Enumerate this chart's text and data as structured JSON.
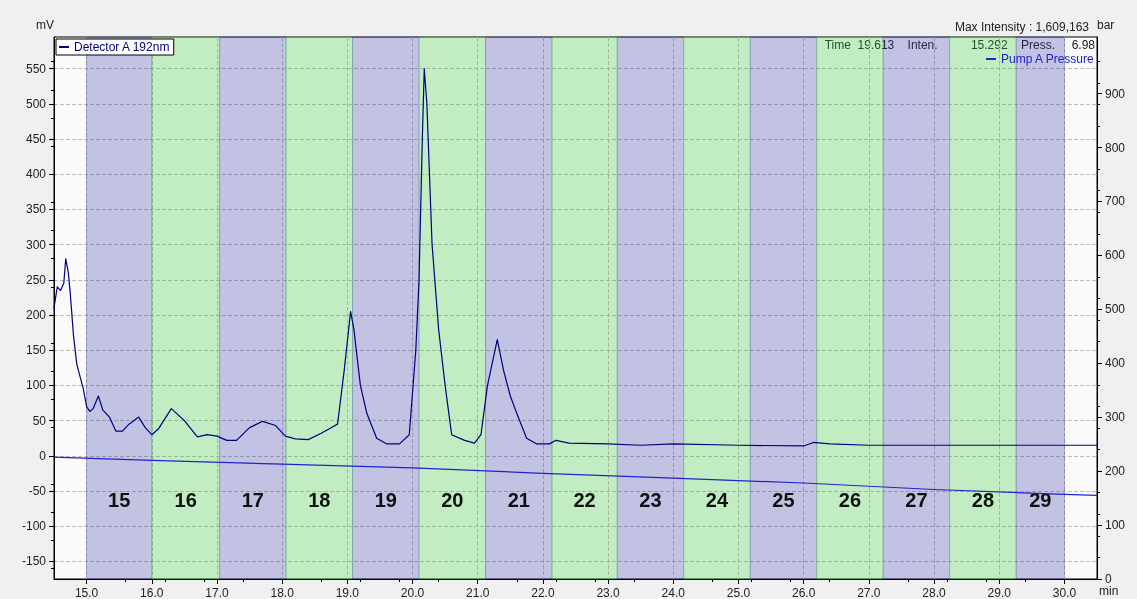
{
  "chart_data": {
    "type": "line",
    "xlabel": "min",
    "ylabel": "mV",
    "y2label": "bar",
    "annotations": [
      "Max Intensity : 1,609,163",
      "Time  19.613    Inten.          15.292    Press.     6.98"
    ],
    "series": [
      {
        "name": "Detector A 192nm",
        "color": "#000080",
        "x": [
          14.5,
          14.55,
          14.6,
          14.65,
          14.68,
          14.72,
          14.75,
          14.8,
          14.85,
          14.95,
          15.0,
          15.05,
          15.1,
          15.18,
          15.25,
          15.35,
          15.45,
          15.55,
          15.65,
          15.8,
          15.9,
          16.0,
          16.1,
          16.3,
          16.5,
          16.7,
          16.85,
          17.0,
          17.15,
          17.3,
          17.5,
          17.7,
          17.9,
          18.05,
          18.2,
          18.4,
          18.6,
          18.75,
          18.85,
          18.95,
          19.05,
          19.1,
          19.2,
          19.3,
          19.45,
          19.6,
          19.8,
          19.95,
          20.05,
          20.1,
          20.15,
          20.18,
          20.22,
          20.3,
          20.4,
          20.5,
          20.6,
          20.8,
          20.95,
          21.05,
          21.15,
          21.3,
          21.4,
          21.5,
          21.6,
          21.75,
          21.9,
          22.1,
          22.2,
          22.4,
          23.0,
          23.5,
          24.0,
          25.0,
          26.0,
          26.15,
          26.4,
          27.0,
          28.0,
          29.0,
          30.0,
          30.5
        ],
        "values": [
          210,
          240,
          235,
          245,
          280,
          260,
          230,
          170,
          130,
          95,
          70,
          63,
          67,
          85,
          65,
          55,
          35,
          35,
          45,
          55,
          40,
          30,
          38,
          67,
          50,
          27,
          30,
          28,
          22,
          22,
          40,
          49,
          43,
          28,
          24,
          23,
          32,
          40,
          45,
          120,
          205,
          180,
          100,
          60,
          25,
          17,
          17,
          30,
          150,
          250,
          450,
          550,
          500,
          300,
          180,
          100,
          30,
          22,
          18,
          30,
          100,
          165,
          120,
          85,
          60,
          25,
          17,
          17,
          22,
          18,
          17,
          15,
          17,
          15,
          14,
          19,
          17,
          15,
          15,
          15,
          15,
          15
        ]
      },
      {
        "name": "Pump A Pressure",
        "color": "#2222cc",
        "axis": "y2",
        "x": [
          14.5,
          16,
          18,
          20,
          22,
          24,
          26,
          28,
          30,
          30.5
        ],
        "values": [
          226,
          220,
          213,
          206,
          196,
          187,
          178,
          166,
          157,
          155
        ]
      }
    ],
    "xlim": [
      14.5,
      30.5
    ],
    "xticks": [
      {
        "value": 15,
        "label": "15.0"
      },
      {
        "value": 16,
        "label": "16.0"
      },
      {
        "value": 17,
        "label": "17.0"
      },
      {
        "value": 18,
        "label": "18.0"
      },
      {
        "value": 19,
        "label": "19.0"
      },
      {
        "value": 20,
        "label": "20.0"
      },
      {
        "value": 21,
        "label": "21.0"
      },
      {
        "value": 22,
        "label": "22.0"
      },
      {
        "value": 23,
        "label": "23.0"
      },
      {
        "value": 24,
        "label": "24.0"
      },
      {
        "value": 25,
        "label": "25.0"
      },
      {
        "value": 26,
        "label": "26.0"
      },
      {
        "value": 27,
        "label": "27.0"
      },
      {
        "value": 28,
        "label": "28.0"
      },
      {
        "value": 29,
        "label": "29.0"
      },
      {
        "value": 30,
        "label": "30.0"
      }
    ],
    "ylim": [
      -175,
      595
    ],
    "yticks": [
      -150,
      -100,
      -50,
      0,
      50,
      100,
      150,
      200,
      250,
      300,
      350,
      400,
      450,
      500,
      550
    ],
    "y2lim": [
      0,
      1005
    ],
    "y2ticks": [
      0,
      100,
      200,
      300,
      400,
      500,
      600,
      700,
      800,
      900
    ],
    "bands": [
      {
        "axis": "x",
        "from": 15.0,
        "to": 16.0,
        "label": "15",
        "color": "#3333aa"
      },
      {
        "axis": "x",
        "from": 16.0,
        "to": 17.04,
        "label": "16",
        "color": "#33cc33"
      },
      {
        "axis": "x",
        "from": 17.04,
        "to": 18.06,
        "label": "17",
        "color": "#3333aa"
      },
      {
        "axis": "x",
        "from": 18.06,
        "to": 19.08,
        "label": "18",
        "color": "#33cc33"
      },
      {
        "axis": "x",
        "from": 19.08,
        "to": 20.1,
        "label": "19",
        "color": "#3333aa"
      },
      {
        "axis": "x",
        "from": 20.1,
        "to": 21.12,
        "label": "20",
        "color": "#33cc33"
      },
      {
        "axis": "x",
        "from": 21.12,
        "to": 22.14,
        "label": "21",
        "color": "#3333aa"
      },
      {
        "axis": "x",
        "from": 22.14,
        "to": 23.14,
        "label": "22",
        "color": "#33cc33"
      },
      {
        "axis": "x",
        "from": 23.14,
        "to": 24.16,
        "label": "23",
        "color": "#3333aa"
      },
      {
        "axis": "x",
        "from": 24.16,
        "to": 25.18,
        "label": "24",
        "color": "#33cc33"
      },
      {
        "axis": "x",
        "from": 25.18,
        "to": 26.2,
        "label": "25",
        "color": "#3333aa"
      },
      {
        "axis": "x",
        "from": 26.2,
        "to": 27.22,
        "label": "26",
        "color": "#33cc33"
      },
      {
        "axis": "x",
        "from": 27.22,
        "to": 28.24,
        "label": "27",
        "color": "#3333aa"
      },
      {
        "axis": "x",
        "from": 28.24,
        "to": 29.26,
        "label": "28",
        "color": "#33cc33"
      },
      {
        "axis": "x",
        "from": 29.26,
        "to": 30.0,
        "label": "29",
        "color": "#3333aa"
      }
    ],
    "grid": true,
    "legend": "top",
    "marker": "none",
    "line_style": "solid"
  }
}
